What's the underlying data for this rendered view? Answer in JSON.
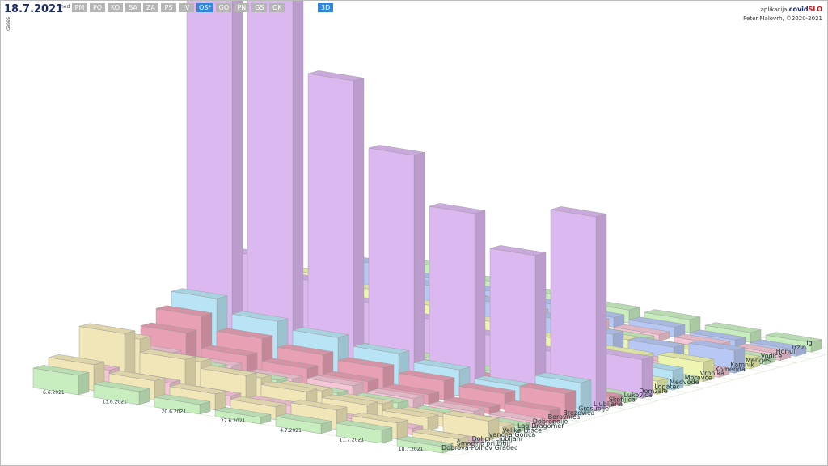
{
  "header": {
    "date": "18.7.2021",
    "weekday": "ned",
    "axis_label": "cases",
    "buttons": [
      "PM",
      "PO",
      "KO",
      "SA",
      "ZA",
      "PS",
      "JV",
      "OS*",
      "GO",
      "PN",
      "GS",
      "OK"
    ],
    "active_button": "OS*",
    "mode_button": "3D",
    "app_prefix": "aplikacija",
    "app_name": "covid",
    "app_name_accent": "SLO",
    "credit": "Peter Malovrh, ©2020-2021"
  },
  "chart_data": {
    "type": "bar3d",
    "dates": [
      "6.6.2021",
      "13.6.2021",
      "20.6.2021",
      "27.6.2021",
      "4.7.2021",
      "11.7.2021",
      "18.7.2021"
    ],
    "series": [
      {
        "name": "Dobrova-Polhov Gradec",
        "color": "#c8eec0",
        "values": [
          6,
          4,
          3,
          2,
          3,
          4,
          2
        ]
      },
      {
        "name": "Šmartno pri Litiji",
        "color": "#f0e6b8",
        "values": [
          8,
          6,
          5,
          4,
          6,
          5,
          3
        ]
      },
      {
        "name": "Dol pri Ljubljani",
        "color": "#f5c6d6",
        "values": [
          5,
          4,
          3,
          3,
          2,
          2,
          1
        ]
      },
      {
        "name": "Ivančna Gorica",
        "color": "#f0e6b8",
        "values": [
          15,
          10,
          8,
          6,
          5,
          4,
          6
        ]
      },
      {
        "name": "Velike Lašče",
        "color": "#f0e6b8",
        "values": [
          12,
          8,
          6,
          5,
          4,
          3,
          3
        ]
      },
      {
        "name": "Log-Dragomer",
        "color": "#c8eec0",
        "values": [
          6,
          5,
          4,
          3,
          3,
          2,
          2
        ]
      },
      {
        "name": "Dobrepolje",
        "color": "#f5c6d6",
        "values": [
          5,
          4,
          3,
          4,
          3,
          2,
          2
        ]
      },
      {
        "name": "Borovnica",
        "color": "#e8a0b4",
        "values": [
          10,
          6,
          5,
          4,
          3,
          2,
          4
        ]
      },
      {
        "name": "Brezovica",
        "color": "#e8a0b4",
        "values": [
          14,
          10,
          8,
          7,
          6,
          5,
          8
        ]
      },
      {
        "name": "Grosuplje",
        "color": "#b8e4f5",
        "values": [
          18,
          14,
          12,
          10,
          8,
          6,
          10
        ]
      },
      {
        "name": "Ljubljana",
        "color": "#dcb8f0",
        "values": [
          140,
          120,
          90,
          70,
          55,
          45,
          60
        ]
      },
      {
        "name": "Škofljica",
        "color": "#e8a0b4",
        "values": [
          8,
          6,
          5,
          4,
          3,
          3,
          3
        ]
      },
      {
        "name": "Lukovica",
        "color": "#c8eec0",
        "values": [
          6,
          5,
          4,
          4,
          3,
          2,
          2
        ]
      },
      {
        "name": "Domžale",
        "color": "#dcb8f0",
        "values": [
          25,
          20,
          16,
          14,
          12,
          10,
          12
        ]
      },
      {
        "name": "Logatec",
        "color": "#eef5b0",
        "values": [
          10,
          8,
          7,
          6,
          5,
          4,
          4
        ]
      },
      {
        "name": "Medvode",
        "color": "#b8e4f5",
        "values": [
          12,
          10,
          8,
          6,
          5,
          5,
          6
        ]
      },
      {
        "name": "Moravče",
        "color": "#c8eec0",
        "values": [
          5,
          4,
          3,
          3,
          2,
          2,
          2
        ]
      },
      {
        "name": "Vrhnika",
        "color": "#eef5b0",
        "values": [
          14,
          12,
          10,
          8,
          6,
          5,
          6
        ]
      },
      {
        "name": "Komenda",
        "color": "#f5c6d6",
        "values": [
          6,
          5,
          4,
          3,
          3,
          2,
          2
        ]
      },
      {
        "name": "Kamnik",
        "color": "#b8c8f5",
        "values": [
          16,
          12,
          10,
          8,
          6,
          5,
          7
        ]
      },
      {
        "name": "Mengeš",
        "color": "#eef5b0",
        "values": [
          8,
          6,
          5,
          4,
          3,
          3,
          3
        ]
      },
      {
        "name": "Vodice",
        "color": "#c8eec0",
        "values": [
          4,
          3,
          3,
          2,
          2,
          1,
          2
        ]
      },
      {
        "name": "Horjul",
        "color": "#f5c6d6",
        "values": [
          5,
          4,
          3,
          3,
          2,
          2,
          2
        ]
      },
      {
        "name": "Trzin",
        "color": "#b8c8f5",
        "values": [
          6,
          5,
          4,
          3,
          3,
          2,
          2
        ]
      },
      {
        "name": "Ig",
        "color": "#c8eec0",
        "values": [
          8,
          6,
          5,
          4,
          4,
          3,
          3
        ]
      }
    ]
  }
}
